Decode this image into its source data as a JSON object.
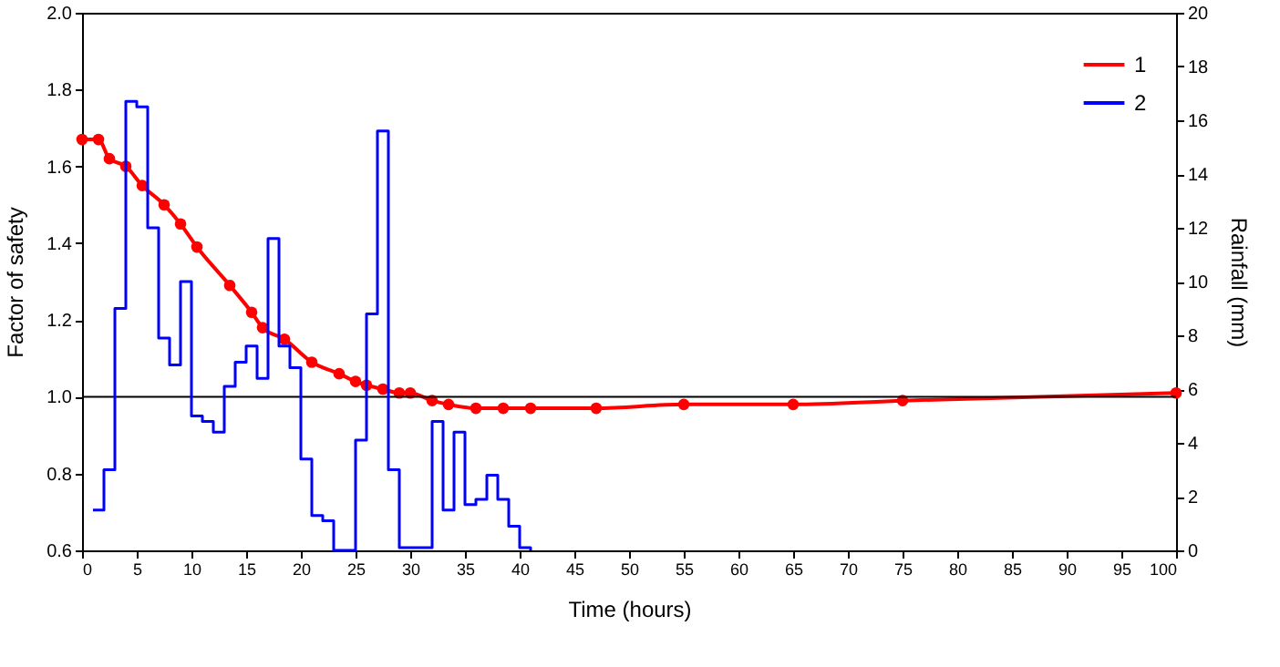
{
  "chart_data": {
    "type": "line",
    "xlabel": "Time (hours)",
    "ylabel": "Factor of safety",
    "y2label": "Rainfall (mm)",
    "xlim": [
      0,
      100
    ],
    "xticks": [
      0,
      5,
      10,
      15,
      20,
      25,
      30,
      35,
      40,
      45,
      50,
      55,
      60,
      65,
      70,
      75,
      80,
      85,
      90,
      95,
      100
    ],
    "ylim": [
      0.6,
      2.0
    ],
    "yticks": [
      0.6,
      0.8,
      {
        "value": 1.0,
        "label": "1.0"
      },
      1.2,
      1.4,
      1.6,
      1.8,
      {
        "value": 2.0,
        "label": "2.0"
      }
    ],
    "y2lim": [
      0,
      20
    ],
    "y2ticks": [
      0,
      2,
      4,
      6,
      8,
      10,
      12,
      14,
      16,
      18,
      20
    ],
    "legend": "top right",
    "grid": false,
    "ref_lines": [
      {
        "axis": "y",
        "value": 1.0,
        "color": "#000000"
      }
    ],
    "series": [
      {
        "name": "1",
        "color": "#ff0000",
        "marker": "circle",
        "x": [
          0,
          1.5,
          2.5,
          4,
          5.5,
          7.5,
          9,
          10.5,
          13.5,
          15.5,
          16.5,
          18.5,
          21,
          23.5,
          25,
          26,
          27.5,
          29,
          30,
          32,
          33.5,
          36,
          38.5,
          41,
          47,
          55,
          65,
          75,
          100
        ],
        "values": [
          1.67,
          1.67,
          1.62,
          1.6,
          1.55,
          1.5,
          1.45,
          1.39,
          1.29,
          1.22,
          1.18,
          1.15,
          1.09,
          1.06,
          1.04,
          1.03,
          1.02,
          1.01,
          1.01,
          0.99,
          0.98,
          0.97,
          0.97,
          0.97,
          0.97,
          0.98,
          0.98,
          0.99,
          1.01
        ]
      },
      {
        "name": "2",
        "color": "#0000ff",
        "type": "step",
        "axis": "y2",
        "x": [
          1,
          2,
          3,
          4,
          5,
          6,
          7,
          8,
          9,
          10,
          11,
          12,
          13,
          14,
          15,
          16,
          17,
          18,
          19,
          20,
          21,
          22,
          23,
          24,
          25,
          26,
          27,
          28,
          29,
          30,
          31,
          32,
          33,
          34,
          35,
          36,
          37,
          38,
          39,
          40,
          41
        ],
        "values": [
          1.5,
          3.0,
          9.0,
          16.7,
          16.5,
          12.0,
          7.9,
          6.9,
          10.0,
          5.0,
          4.8,
          4.4,
          6.1,
          7.0,
          7.6,
          6.4,
          11.6,
          7.6,
          6.8,
          3.4,
          1.3,
          1.1,
          0,
          0,
          4.1,
          8.8,
          15.6,
          3.0,
          0.1,
          0.1,
          0.1,
          4.8,
          1.5,
          4.4,
          1.7,
          1.9,
          2.8,
          1.9,
          0.9,
          0.1,
          0
        ]
      }
    ]
  }
}
